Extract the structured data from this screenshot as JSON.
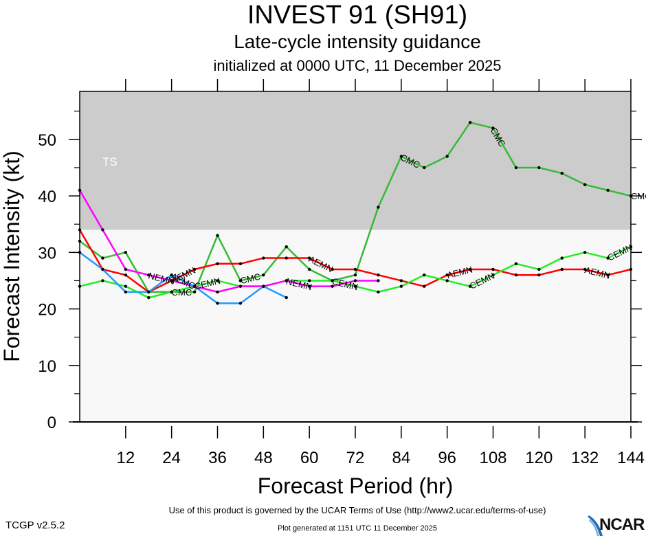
{
  "header": {
    "title": "INVEST 91 (SH91)",
    "subtitle": "Late-cycle intensity guidance",
    "init_line": "initialized at 0000 UTC, 11 December 2025"
  },
  "footer": {
    "terms": "Use of this product is governed by the UCAR Terms of Use (http://www2.ucar.edu/terms-of-use)",
    "generated": "Plot generated at 1151 UTC   11 December 2025",
    "version": "TCGP v2.5.2",
    "logo_text": "NCAR"
  },
  "chart_data": {
    "type": "line",
    "title": "Late-cycle intensity guidance",
    "xlabel": "Forecast Period (hr)",
    "ylabel": "Forecast Intensity (kt)",
    "xlim": [
      0,
      144
    ],
    "ylim": [
      0,
      58.5
    ],
    "xticks": [
      12,
      24,
      36,
      48,
      60,
      72,
      84,
      96,
      108,
      120,
      132,
      144
    ],
    "yticks": [
      0,
      10,
      20,
      30,
      40,
      50
    ],
    "grid": false,
    "bands": [
      {
        "label": "TS",
        "from": 34,
        "to": 58.5,
        "color": "#cccccc"
      }
    ],
    "background_color": "#f8f8f8",
    "series": [
      {
        "name": "CMC",
        "color": "#33bb33",
        "x": [
          0,
          6,
          12,
          18,
          24,
          30,
          36,
          42,
          48,
          54,
          60,
          66,
          72,
          78,
          84,
          90,
          96,
          102,
          108,
          114,
          120,
          126,
          132,
          138,
          144
        ],
        "values": [
          32,
          29,
          30,
          23,
          23,
          23,
          33,
          25,
          26,
          31,
          27,
          25,
          26,
          38,
          47,
          45,
          47,
          53,
          52,
          45,
          45,
          44,
          42,
          41,
          40
        ],
        "labels_at": [
          24,
          42,
          84,
          108,
          144
        ]
      },
      {
        "name": "AEMN",
        "color": "#ff0000",
        "x": [
          0,
          6,
          12,
          18,
          24,
          30,
          36,
          42,
          48,
          54,
          60,
          66,
          72,
          78,
          84,
          90,
          96,
          102,
          108,
          114,
          120,
          126,
          132,
          138,
          144
        ],
        "values": [
          34,
          27,
          26,
          23,
          25,
          27,
          28,
          28,
          29,
          29,
          29,
          27,
          27,
          26,
          25,
          24,
          26,
          27,
          27,
          26,
          26,
          27,
          27,
          26,
          27
        ],
        "labels_at": [
          24,
          60,
          96,
          132
        ]
      },
      {
        "name": "CEMN",
        "color": "#22ee22",
        "x": [
          0,
          6,
          12,
          18,
          24,
          30,
          36,
          42,
          48,
          54,
          60,
          66,
          72,
          78,
          84,
          90,
          96,
          102,
          108,
          114,
          120,
          126,
          132,
          138,
          144
        ],
        "values": [
          24,
          25,
          24,
          22,
          23,
          24,
          25,
          24,
          24,
          25,
          25,
          25,
          24,
          23,
          24,
          26,
          25,
          24,
          26,
          28,
          27,
          29,
          30,
          29,
          31
        ],
        "labels_at": [
          30,
          66,
          102,
          138
        ]
      },
      {
        "name": "NEMN",
        "color": "#ff00ff",
        "x": [
          0,
          6,
          12,
          18,
          24,
          30,
          36,
          42,
          48,
          54,
          60,
          66,
          72,
          78
        ],
        "values": [
          41,
          34,
          27,
          26,
          25,
          24,
          23,
          24,
          24,
          25,
          24,
          24,
          25,
          25
        ],
        "labels_at": [
          18,
          54
        ]
      },
      {
        "name": "AEMC",
        "color": "#2299ff",
        "x": [
          0,
          6,
          12,
          18,
          24,
          30,
          36,
          42,
          48,
          54
        ],
        "values": [
          30,
          27,
          23,
          23,
          26,
          24,
          21,
          21,
          24,
          22
        ],
        "labels_at": [
          24
        ]
      }
    ]
  }
}
